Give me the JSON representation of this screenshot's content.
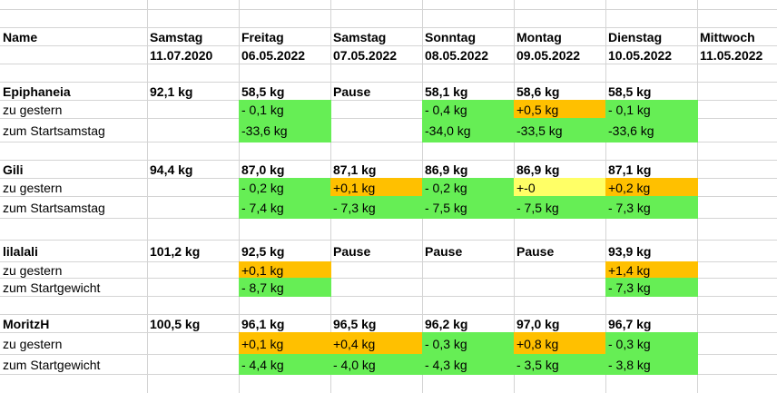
{
  "colors": {
    "green": "#66ee55",
    "orange": "#ffc000",
    "yellow": "#ffff66",
    "grid": "#d4d4d4"
  },
  "header": {
    "name_label": "Name",
    "days": [
      {
        "day": "Samstag",
        "date": "11.07.2020"
      },
      {
        "day": "Freitag",
        "date": "06.05.2022"
      },
      {
        "day": "Samstag",
        "date": "07.05.2022"
      },
      {
        "day": "Sonntag",
        "date": "08.05.2022"
      },
      {
        "day": "Montag",
        "date": "09.05.2022"
      },
      {
        "day": "Dienstag",
        "date": "10.05.2022"
      },
      {
        "day": "Mittwoch",
        "date": "11.05.2022"
      }
    ]
  },
  "people": [
    {
      "name": "Epiphaneia",
      "weights": [
        "92,1 kg",
        "58,5 kg",
        "Pause",
        "58,1 kg",
        "58,6 kg",
        "58,5 kg",
        ""
      ],
      "rows": [
        {
          "label": "zu gestern",
          "values": [
            "",
            "- 0,1 kg",
            "",
            "- 0,4 kg",
            "+0,5 kg",
            "- 0,1 kg",
            ""
          ],
          "colors": [
            "",
            "green",
            "",
            "green",
            "orange",
            "green",
            ""
          ]
        },
        {
          "label": "zum Startsamstag",
          "values": [
            "",
            "-33,6 kg",
            "",
            "-34,0 kg",
            "-33,5 kg",
            "-33,6 kg",
            ""
          ],
          "colors": [
            "",
            "green",
            "",
            "green",
            "green",
            "green",
            ""
          ]
        }
      ]
    },
    {
      "name": "Gili",
      "weights": [
        "94,4 kg",
        "87,0 kg",
        "87,1 kg",
        "86,9 kg",
        "86,9 kg",
        "87,1 kg",
        ""
      ],
      "rows": [
        {
          "label": "zu gestern",
          "values": [
            "",
            "- 0,2 kg",
            "+0,1 kg",
            "- 0,2 kg",
            "+-0",
            "+0,2 kg",
            ""
          ],
          "colors": [
            "",
            "green",
            "orange",
            "green",
            "yellow",
            "orange",
            ""
          ]
        },
        {
          "label": "zum Startsamstag",
          "values": [
            "",
            "- 7,4 kg",
            "- 7,3 kg",
            "- 7,5 kg",
            "- 7,5 kg",
            "- 7,3 kg",
            ""
          ],
          "colors": [
            "",
            "green",
            "green",
            "green",
            "green",
            "green",
            ""
          ]
        }
      ]
    },
    {
      "name": "lilalali",
      "weights": [
        "101,2 kg",
        "92,5 kg",
        "Pause",
        "Pause",
        "Pause",
        "93,9 kg",
        ""
      ],
      "rows": [
        {
          "label": "zu gestern",
          "values": [
            "",
            "+0,1 kg",
            "",
            "",
            "",
            "+1,4 kg",
            ""
          ],
          "colors": [
            "",
            "orange",
            "",
            "",
            "",
            "orange",
            ""
          ]
        },
        {
          "label": "zum Startgewicht",
          "values": [
            "",
            "- 8,7 kg",
            "",
            "",
            "",
            "- 7,3 kg",
            ""
          ],
          "colors": [
            "",
            "green",
            "",
            "",
            "",
            "green",
            ""
          ]
        }
      ]
    },
    {
      "name": "MoritzH",
      "weights": [
        "100,5 kg",
        "96,1 kg",
        "96,5 kg",
        "96,2 kg",
        "97,0 kg",
        "96,7 kg",
        ""
      ],
      "rows": [
        {
          "label": "zu gestern",
          "values": [
            "",
            "+0,1 kg",
            "+0,4 kg",
            " - 0,3 kg",
            "+0,8 kg",
            "- 0,3 kg",
            ""
          ],
          "colors": [
            "",
            "orange",
            "orange",
            "green",
            "orange",
            "green",
            ""
          ]
        },
        {
          "label": "zum Startgewicht",
          "values": [
            "",
            "- 4,4 kg",
            "- 4,0 kg",
            " - 4,3 kg",
            "- 3,5 kg",
            "- 3,8 kg",
            ""
          ],
          "colors": [
            "",
            "green",
            "green",
            "green",
            "green",
            "green",
            ""
          ]
        }
      ]
    }
  ]
}
